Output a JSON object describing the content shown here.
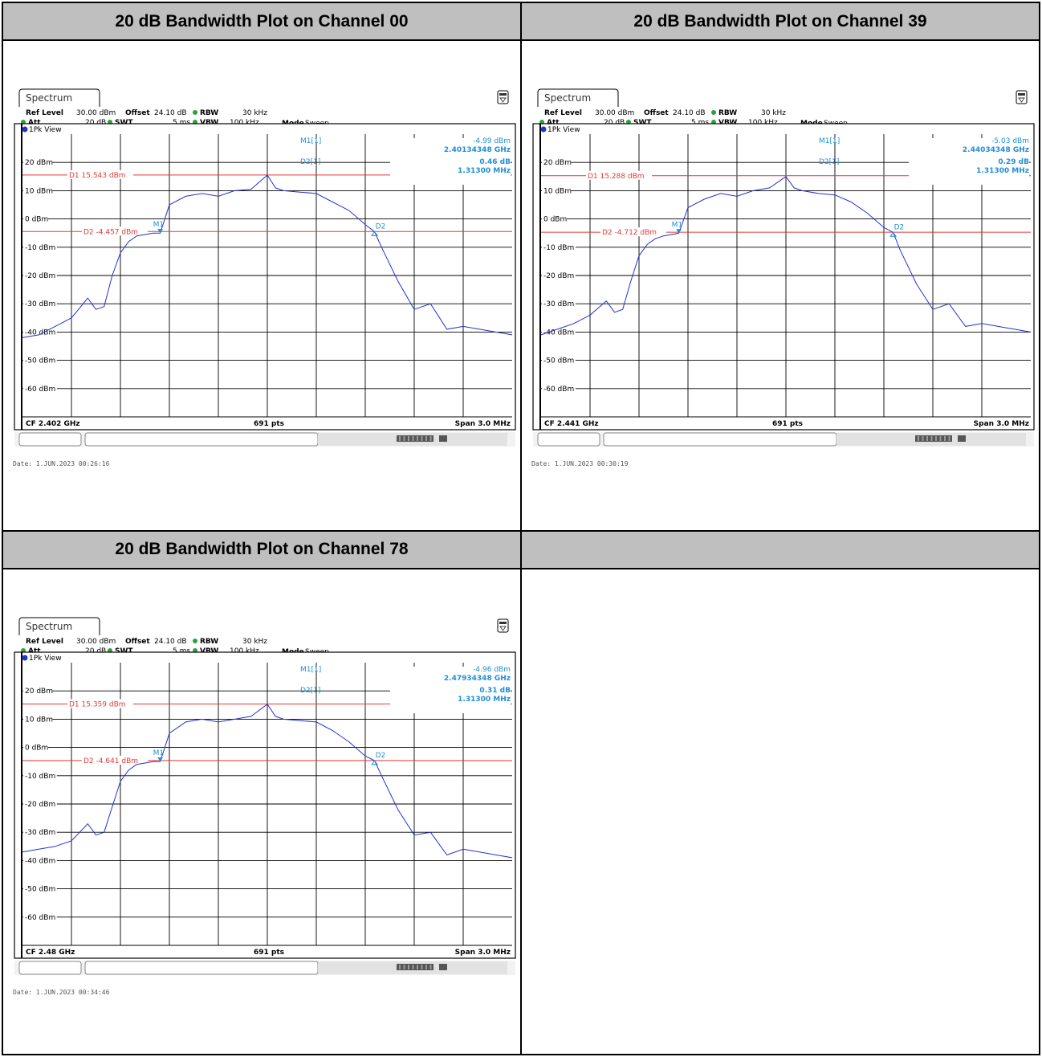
{
  "headers": [
    "20 dB Bandwidth Plot on Channel 00",
    "20 dB Bandwidth Plot on Channel 39",
    "20 dB Bandwidth Plot on Channel 78",
    ""
  ],
  "colors": {
    "trace": "#2233cc",
    "display_line": "#e53935",
    "marker_text": "#1f8fd6",
    "grid": "#000000"
  },
  "chart_data": [
    {
      "type": "line",
      "tab": "Spectrum",
      "settings": {
        "ref_level_label": "Ref Level",
        "ref_level_value": "30.00 dBm",
        "offset_label": "Offset",
        "offset_value": "24.10 dB",
        "rbw_label": "RBW",
        "rbw_value": "30 kHz",
        "att_label": "Att",
        "att_value": "20 dB",
        "swt_label": "SWT",
        "swt_value": "5 ms",
        "vbw_label": "VBW",
        "vbw_value": "100 kHz",
        "mode_label": "Mode",
        "mode_value": "Sweep"
      },
      "trace_label": "1Pk View",
      "marker_table": {
        "m1_name": "M1[1]",
        "m1_level": "-4.99 dBm",
        "m1_freq": "2.40134348 GHz",
        "d2_name": "D2[1]",
        "d2_level": "0.46 dB",
        "d2_freq": "1.31300 MHz"
      },
      "display_lines": {
        "d1_label": "D1 15.543 dBm",
        "d1_value": 15.543,
        "d2_label": "D2 -4.457 dBm",
        "d2_value": -4.457
      },
      "markers": [
        {
          "label": "M1",
          "x": -0.656,
          "y": -4.99
        },
        {
          "label": "D2",
          "x": 0.657,
          "y": -4.53
        }
      ],
      "y_ticks": [
        "20 dBm",
        "10 dBm",
        "0 dBm",
        "-10 dBm",
        "-20 dBm",
        "-30 dBm",
        "-40 dBm",
        "-50 dBm",
        "-60 dBm"
      ],
      "ylim": [
        -70,
        30
      ],
      "xlim": [
        -1.5,
        1.5
      ],
      "cf_label": "CF 2.402 GHz",
      "pts_label": "691 pts",
      "span_label": "Span 3.0 MHz",
      "date_text": "Date: 1.JUN.2023  00:26:16",
      "series": [
        {
          "x": [
            -1.5,
            -1.4,
            -1.3,
            -1.2,
            -1.1,
            -1.05,
            -1.0,
            -0.95,
            -0.9,
            -0.85,
            -0.8,
            -0.75,
            -0.7,
            -0.656,
            -0.6,
            -0.5,
            -0.4,
            -0.3,
            -0.2,
            -0.1,
            0.0,
            0.05,
            0.1,
            0.2,
            0.3,
            0.4,
            0.5,
            0.6,
            0.657,
            0.7,
            0.8,
            0.9,
            1.0,
            1.1,
            1.2,
            1.3,
            1.4,
            1.5
          ],
          "y": [
            -42,
            -41,
            -38,
            -35,
            -28,
            -32,
            -31,
            -20,
            -12,
            -8,
            -6,
            -5.5,
            -5,
            -4.99,
            5,
            8,
            9,
            8,
            10,
            10.5,
            15.5,
            11,
            10,
            9.5,
            9,
            6,
            3,
            -2,
            -4.53,
            -10,
            -22,
            -32,
            -30,
            -39,
            -38,
            -39,
            -40,
            -41
          ]
        }
      ]
    },
    {
      "type": "line",
      "tab": "Spectrum",
      "settings": {
        "ref_level_label": "Ref Level",
        "ref_level_value": "30.00 dBm",
        "offset_label": "Offset",
        "offset_value": "24.10 dB",
        "rbw_label": "RBW",
        "rbw_value": "30 kHz",
        "att_label": "Att",
        "att_value": "20 dB",
        "swt_label": "SWT",
        "swt_value": "5 ms",
        "vbw_label": "VBW",
        "vbw_value": "100 kHz",
        "mode_label": "Mode",
        "mode_value": "Sweep"
      },
      "trace_label": "1Pk View",
      "marker_table": {
        "m1_name": "M1[1]",
        "m1_level": "-5.03 dBm",
        "m1_freq": "2.44034348 GHz",
        "d2_name": "D2[1]",
        "d2_level": "0.29 dB",
        "d2_freq": "1.31300 MHz"
      },
      "display_lines": {
        "d1_label": "D1 15.288 dBm",
        "d1_value": 15.288,
        "d2_label": "D2 -4.712 dBm",
        "d2_value": -4.712
      },
      "markers": [
        {
          "label": "M1",
          "x": -0.656,
          "y": -5.03
        },
        {
          "label": "D2",
          "x": 0.657,
          "y": -4.74
        }
      ],
      "y_ticks": [
        "20 dBm",
        "10 dBm",
        "0 dBm",
        "-10 dBm",
        "-20 dBm",
        "-30 dBm",
        "-40 dBm",
        "-50 dBm",
        "-60 dBm"
      ],
      "ylim": [
        -70,
        30
      ],
      "xlim": [
        -1.5,
        1.5
      ],
      "cf_label": "CF 2.441 GHz",
      "pts_label": "691 pts",
      "span_label": "Span 3.0 MHz",
      "date_text": "Date: 1.JUN.2023  00:30:19",
      "series": [
        {
          "x": [
            -1.5,
            -1.4,
            -1.3,
            -1.2,
            -1.1,
            -1.05,
            -1.0,
            -0.95,
            -0.9,
            -0.85,
            -0.8,
            -0.75,
            -0.7,
            -0.656,
            -0.6,
            -0.5,
            -0.4,
            -0.3,
            -0.2,
            -0.1,
            0.0,
            0.05,
            0.1,
            0.2,
            0.3,
            0.4,
            0.5,
            0.6,
            0.657,
            0.7,
            0.8,
            0.9,
            1.0,
            1.1,
            1.2,
            1.3,
            1.4,
            1.5
          ],
          "y": [
            -41,
            -39,
            -37,
            -34,
            -29,
            -33,
            -32,
            -22,
            -13,
            -9,
            -7,
            -6,
            -5.5,
            -5.03,
            4,
            7,
            9,
            8,
            10,
            11,
            15,
            11,
            10,
            9,
            8.5,
            6,
            2,
            -3,
            -4.74,
            -11,
            -23,
            -32,
            -30,
            -38,
            -37,
            -38,
            -39,
            -40
          ]
        }
      ]
    },
    {
      "type": "line",
      "tab": "Spectrum",
      "settings": {
        "ref_level_label": "Ref Level",
        "ref_level_value": "30.00 dBm",
        "offset_label": "Offset",
        "offset_value": "24.10 dB",
        "rbw_label": "RBW",
        "rbw_value": "30 kHz",
        "att_label": "Att",
        "att_value": "20 dB",
        "swt_label": "SWT",
        "swt_value": "5 ms",
        "vbw_label": "VBW",
        "vbw_value": "100 kHz",
        "mode_label": "Mode",
        "mode_value": "Sweep"
      },
      "trace_label": "1Pk View",
      "marker_table": {
        "m1_name": "M1[1]",
        "m1_level": "-4.96 dBm",
        "m1_freq": "2.47934348 GHz",
        "d2_name": "D2[1]",
        "d2_level": "0.31 dB",
        "d2_freq": "1.31300 MHz"
      },
      "display_lines": {
        "d1_label": "D1 15.359 dBm",
        "d1_value": 15.359,
        "d2_label": "D2 -4.641 dBm",
        "d2_value": -4.641
      },
      "markers": [
        {
          "label": "M1",
          "x": -0.656,
          "y": -4.96
        },
        {
          "label": "D2",
          "x": 0.657,
          "y": -4.65
        }
      ],
      "y_ticks": [
        "20 dBm",
        "10 dBm",
        "0 dBm",
        "-10 dBm",
        "-20 dBm",
        "-30 dBm",
        "-40 dBm",
        "-50 dBm",
        "-60 dBm"
      ],
      "ylim": [
        -70,
        30
      ],
      "xlim": [
        -1.5,
        1.5
      ],
      "cf_label": "CF 2.48 GHz",
      "pts_label": "691 pts",
      "span_label": "Span 3.0 MHz",
      "date_text": "Date: 1.JUN.2023  00:34:46",
      "series": [
        {
          "x": [
            -1.5,
            -1.4,
            -1.3,
            -1.2,
            -1.1,
            -1.05,
            -1.0,
            -0.95,
            -0.9,
            -0.85,
            -0.8,
            -0.75,
            -0.7,
            -0.656,
            -0.6,
            -0.5,
            -0.4,
            -0.3,
            -0.2,
            -0.1,
            0.0,
            0.05,
            0.1,
            0.2,
            0.3,
            0.4,
            0.5,
            0.6,
            0.657,
            0.7,
            0.8,
            0.9,
            1.0,
            1.1,
            1.2,
            1.3,
            1.4,
            1.5
          ],
          "y": [
            -37,
            -36,
            -35,
            -33,
            -27,
            -31,
            -30,
            -21,
            -12,
            -8,
            -6,
            -5.5,
            -5,
            -4.96,
            5,
            9,
            10,
            9,
            10,
            11,
            15.3,
            11,
            10,
            9.5,
            9,
            6,
            2,
            -3,
            -4.65,
            -10,
            -22,
            -31,
            -30,
            -38,
            -36,
            -37,
            -38,
            -39
          ]
        }
      ]
    }
  ]
}
